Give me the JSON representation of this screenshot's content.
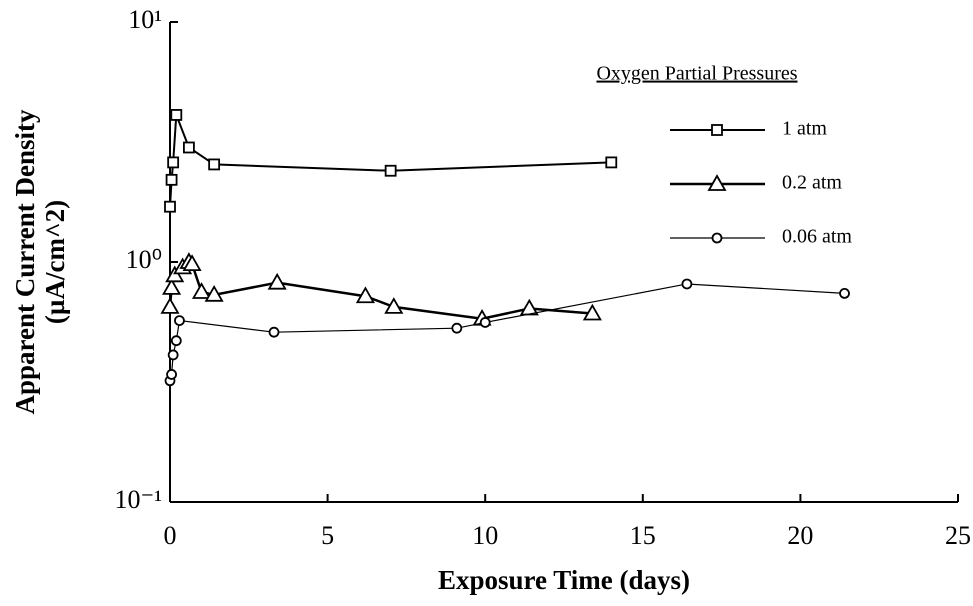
{
  "chart_data": {
    "type": "line",
    "xlabel": "Exposure Time (days)",
    "ylabel": [
      "Apparent Current Density",
      "(µA/cm^2)"
    ],
    "legend_title": "Oxygen Partial Pressures",
    "legend": "upper right",
    "log_y": true,
    "xlim": [
      0,
      25
    ],
    "xticks": [
      0,
      5,
      10,
      15,
      20,
      25
    ],
    "ylim": [
      0.1,
      10
    ],
    "yticks": [
      {
        "value": 0.1,
        "label": "10⁻¹"
      },
      {
        "value": 1,
        "label": "10⁰"
      },
      {
        "value": 10,
        "label": "10¹"
      }
    ],
    "series": [
      {
        "name": "1 atm",
        "color": "#000000",
        "marker": "square",
        "width": 2,
        "x": [
          0,
          0.05,
          0.1,
          0.2,
          0.6,
          1.4,
          7.0,
          14.0
        ],
        "values": [
          1.7,
          2.2,
          2.6,
          4.1,
          3.0,
          2.55,
          2.4,
          2.6
        ]
      },
      {
        "name": "0.2 atm",
        "color": "#000000",
        "marker": "triangle",
        "width": 2.5,
        "x": [
          0,
          0.05,
          0.15,
          0.4,
          0.6,
          0.7,
          1.0,
          1.4,
          3.4,
          6.2,
          7.1,
          9.9,
          11.4,
          13.4
        ],
        "values": [
          0.65,
          0.78,
          0.88,
          0.95,
          1.0,
          0.98,
          0.75,
          0.73,
          0.82,
          0.72,
          0.65,
          0.58,
          0.64,
          0.61
        ]
      },
      {
        "name": "0.06 atm",
        "color": "#000000",
        "marker": "circle",
        "width": 1.2,
        "x": [
          0,
          0.05,
          0.1,
          0.2,
          0.3,
          3.3,
          9.1,
          10.0,
          16.4,
          21.4
        ],
        "values": [
          0.32,
          0.34,
          0.41,
          0.47,
          0.57,
          0.51,
          0.53,
          0.56,
          0.81,
          0.74
        ]
      }
    ]
  }
}
